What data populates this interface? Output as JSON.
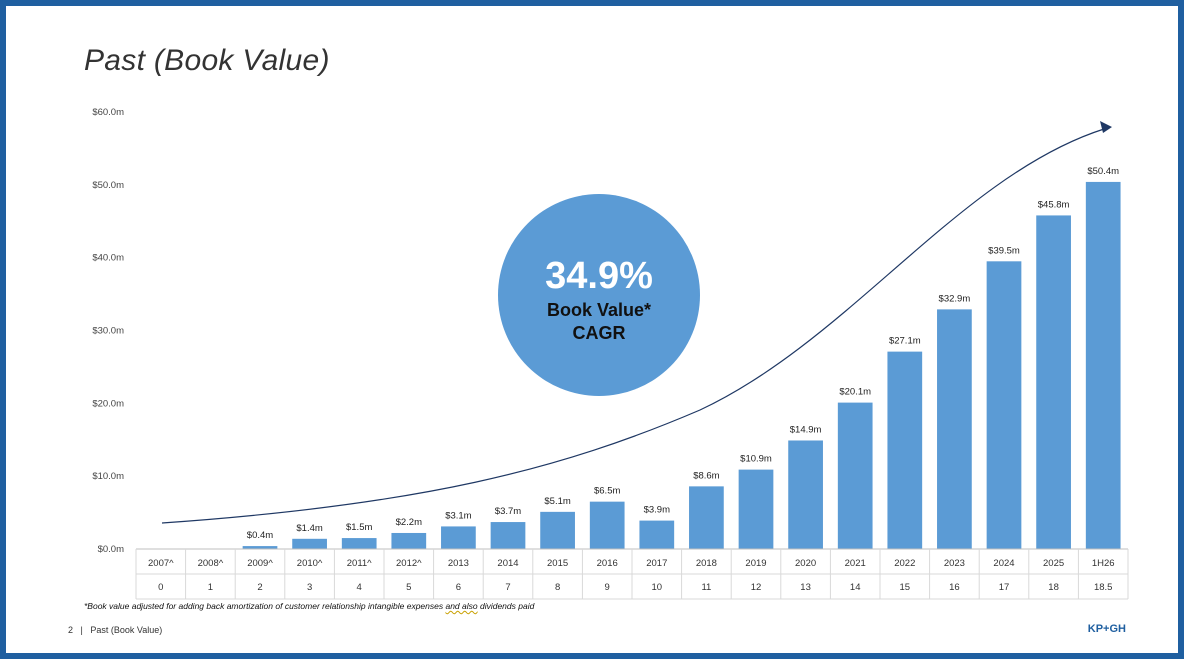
{
  "slide": {
    "title": "Past (Book Value)",
    "footnote_pre": "*Book value adjusted for adding back amortization of customer relationship intangible expenses ",
    "footnote_mark": "and also",
    "footnote_post": " dividends paid",
    "page_number": "2",
    "footer_separator": "|",
    "footer_section": "Past (Book Value)",
    "brand": "KP+GH"
  },
  "callout": {
    "value": "34.9%",
    "line1": "Book Value*",
    "line2": "CAGR"
  },
  "colors": {
    "bar": "#5b9bd5",
    "circle": "#5b9bd5",
    "frame": "#1f5fa0",
    "arrow": "#1f3864"
  },
  "chart_data": {
    "type": "bar",
    "categories": [
      "2007^",
      "2008^",
      "2009^",
      "2010^",
      "2011^",
      "2012^",
      "2013",
      "2014",
      "2015",
      "2016",
      "2017",
      "2018",
      "2019",
      "2020",
      "2021",
      "2022",
      "2023",
      "2024",
      "2025",
      "1H26"
    ],
    "period_index": [
      "0",
      "1",
      "2",
      "3",
      "4",
      "5",
      "6",
      "7",
      "8",
      "9",
      "10",
      "11",
      "12",
      "13",
      "14",
      "15",
      "16",
      "17",
      "18",
      "18.5"
    ],
    "values": [
      0,
      0,
      0.4,
      1.4,
      1.5,
      2.2,
      3.1,
      3.7,
      5.1,
      6.5,
      3.9,
      8.6,
      10.9,
      14.9,
      20.1,
      27.1,
      32.9,
      39.5,
      45.8,
      50.4
    ],
    "data_labels": [
      "",
      "",
      "$0.4m",
      "$1.4m",
      "$1.5m",
      "$2.2m",
      "$3.1m",
      "$3.7m",
      "$5.1m",
      "$6.5m",
      "$3.9m",
      "$8.6m",
      "$10.9m",
      "$14.9m",
      "$20.1m",
      "$27.1m",
      "$32.9m",
      "$39.5m",
      "$45.8m",
      "$50.4m"
    ],
    "yticks": [
      0,
      10,
      20,
      30,
      40,
      50,
      60
    ],
    "ytick_labels": [
      "$0.0m",
      "$10.0m",
      "$20.0m",
      "$30.0m",
      "$40.0m",
      "$50.0m",
      "$60.0m"
    ],
    "ylim": [
      0,
      60
    ],
    "title": "Past (Book Value)",
    "xlabel": "",
    "ylabel": "",
    "grid": false,
    "legend": "none"
  }
}
